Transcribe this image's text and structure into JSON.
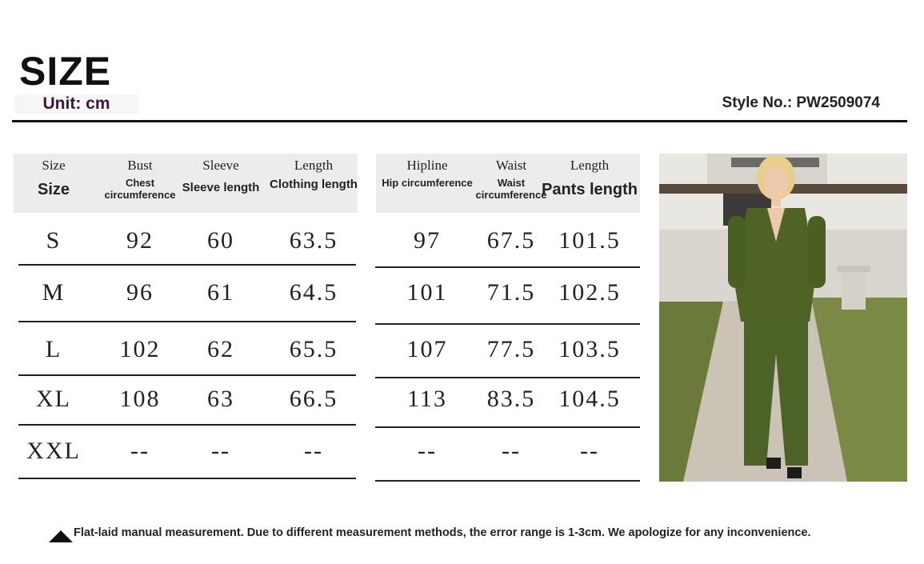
{
  "header": {
    "title": "SIZE",
    "unit": "Unit: cm",
    "style_no": "Style No.: PW2509074"
  },
  "table_left": {
    "headers": [
      {
        "top": "Size",
        "bottom": "Size"
      },
      {
        "top": "Bust",
        "bottom": "Chest circumference"
      },
      {
        "top": "Sleeve",
        "bottom": "Sleeve length"
      },
      {
        "top": "Length",
        "bottom": "Clothing length"
      }
    ],
    "rows": [
      [
        "S",
        "92",
        "60",
        "63.5"
      ],
      [
        "M",
        "96",
        "61",
        "64.5"
      ],
      [
        "L",
        "102",
        "62",
        "65.5"
      ],
      [
        "XL",
        "108",
        "63",
        "66.5"
      ],
      [
        "XXL",
        "--",
        "--",
        "--"
      ]
    ]
  },
  "table_right": {
    "headers": [
      {
        "top": "Hipline",
        "bottom": "Hip circumference"
      },
      {
        "top": "Waist",
        "bottom": "Waist circumference"
      },
      {
        "top": "Length",
        "bottom": "Pants length"
      }
    ],
    "rows": [
      [
        "97",
        "67.5",
        "101.5"
      ],
      [
        "101",
        "71.5",
        "102.5"
      ],
      [
        "107",
        "77.5",
        "103.5"
      ],
      [
        "113",
        "83.5",
        "104.5"
      ],
      [
        "--",
        "--",
        "--"
      ]
    ]
  },
  "note": "Flat-laid manual measurement. Due to different measurement methods, the error range is 1-3cm. We apologize for any inconvenience."
}
